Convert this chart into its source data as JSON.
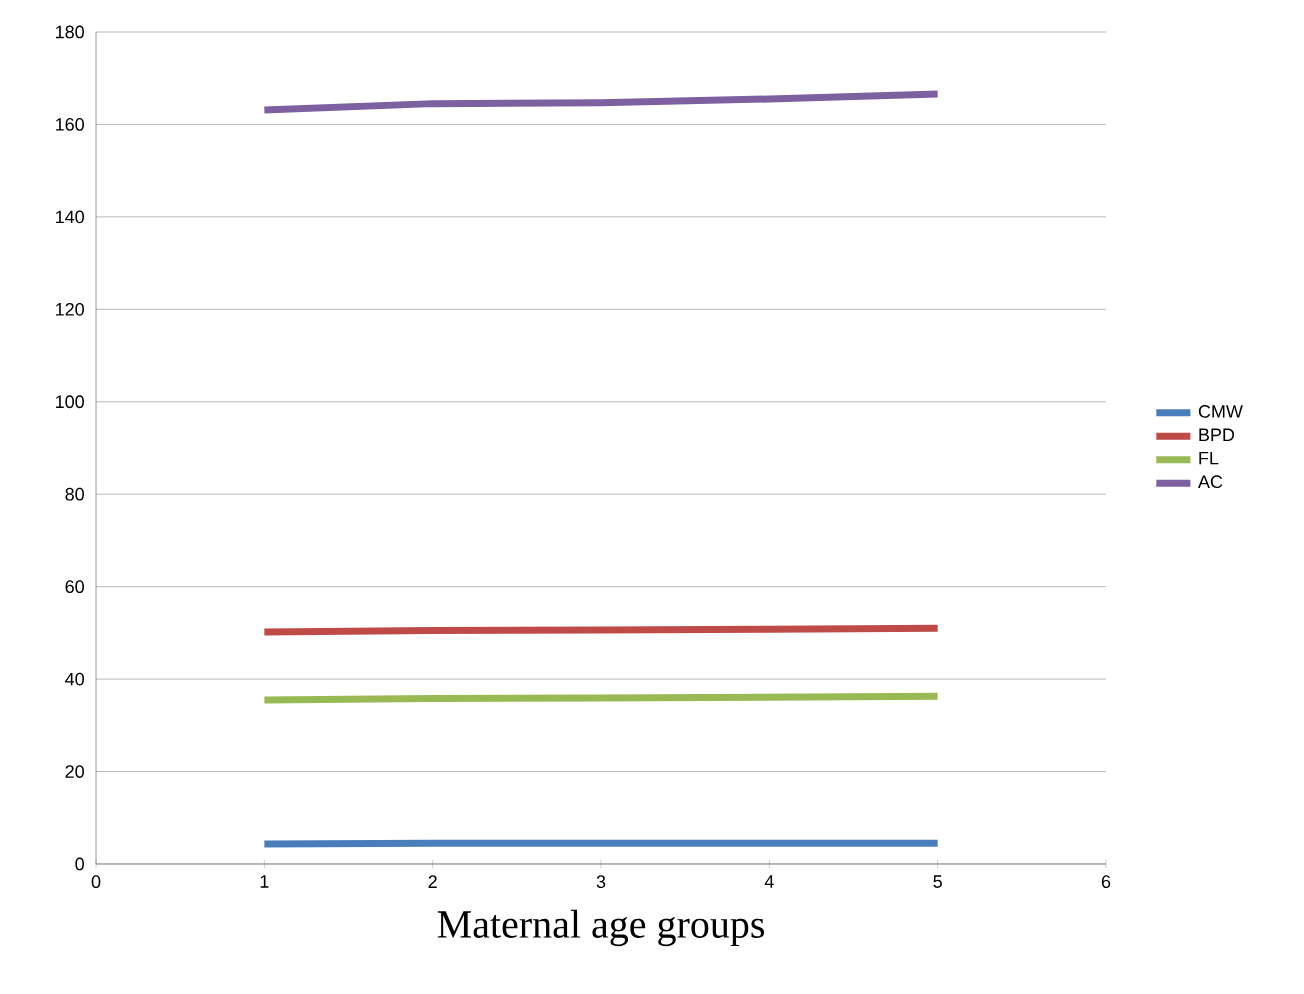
{
  "chart_data": {
    "type": "line",
    "xlabel": "Maternal age groups",
    "x": [
      1,
      2,
      3,
      4,
      5
    ],
    "series": [
      {
        "name": "CMW",
        "color": "#4a7ebb",
        "values": [
          4.3,
          4.5,
          4.5,
          4.5,
          4.5
        ]
      },
      {
        "name": "BPD",
        "color": "#be4b48",
        "values": [
          50.2,
          50.5,
          50.6,
          50.8,
          51
        ]
      },
      {
        "name": "FL",
        "color": "#98b954",
        "values": [
          35.5,
          35.8,
          35.9,
          36.1,
          36.3
        ]
      },
      {
        "name": "AC",
        "color": "#7d60a0",
        "values": [
          163.1,
          164.5,
          164.7,
          165.5,
          166.6
        ]
      }
    ],
    "xlim": [
      0,
      6
    ],
    "xticks": [
      0,
      1,
      2,
      3,
      4,
      5,
      6
    ],
    "ylim": [
      0,
      180
    ],
    "yticks": [
      0,
      20,
      40,
      60,
      80,
      100,
      120,
      140,
      160,
      180
    ],
    "grid": "y",
    "legend": "right",
    "marker": "none",
    "line_style": "solid"
  }
}
